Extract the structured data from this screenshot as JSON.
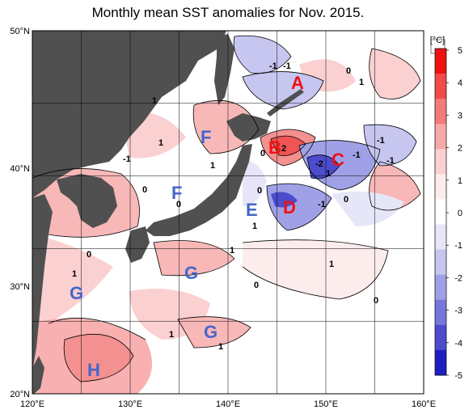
{
  "title": "Monthly mean SST anomalies for Nov. 2015.",
  "lat_labels": [
    "50°N",
    "40°N",
    "30°N",
    "20°N"
  ],
  "lon_labels": [
    "120°E",
    "130°E",
    "140°E",
    "150°E",
    "160°E"
  ],
  "colorbar": {
    "unit": "[°C]",
    "ticks": [
      "5",
      "4",
      "3",
      "2",
      "1",
      "0",
      "-1",
      "-2",
      "-3",
      "-4",
      "-5"
    ],
    "colors": [
      "#ee1111",
      "#f24a4a",
      "#f57a7a",
      "#f8a8a8",
      "#fbd0d0",
      "#fdecec",
      "#ffffff",
      "#e6e6f8",
      "#c6c6f0",
      "#a0a0e6",
      "#7676da",
      "#4c4ccc",
      "#1e1ebe"
    ]
  },
  "region_labels": {
    "A": "A",
    "B": "B",
    "C": "C",
    "D": "D",
    "E": "E",
    "F1": "F",
    "F2": "F",
    "G1": "G",
    "G2": "G",
    "G3": "G",
    "H": "H"
  },
  "contour_labels": {
    "c1": "-1",
    "c2": "-1",
    "c3": "0",
    "c4": "1",
    "c5": "1",
    "c6": "1",
    "c7": "2",
    "c8": "0",
    "c9": "-2",
    "c10": "-1",
    "c11": "-1",
    "c12": "-1",
    "c13": "-1",
    "c14": "1",
    "c15": "0",
    "c16": "0",
    "c17": "1",
    "c18": "0",
    "c19": "-1",
    "c20": "0",
    "c21": "1",
    "c22": "0",
    "c23": "1",
    "c24": "1",
    "c25": "0",
    "c26": "1",
    "c27": "0",
    "c28": "1",
    "c29": "1"
  }
}
